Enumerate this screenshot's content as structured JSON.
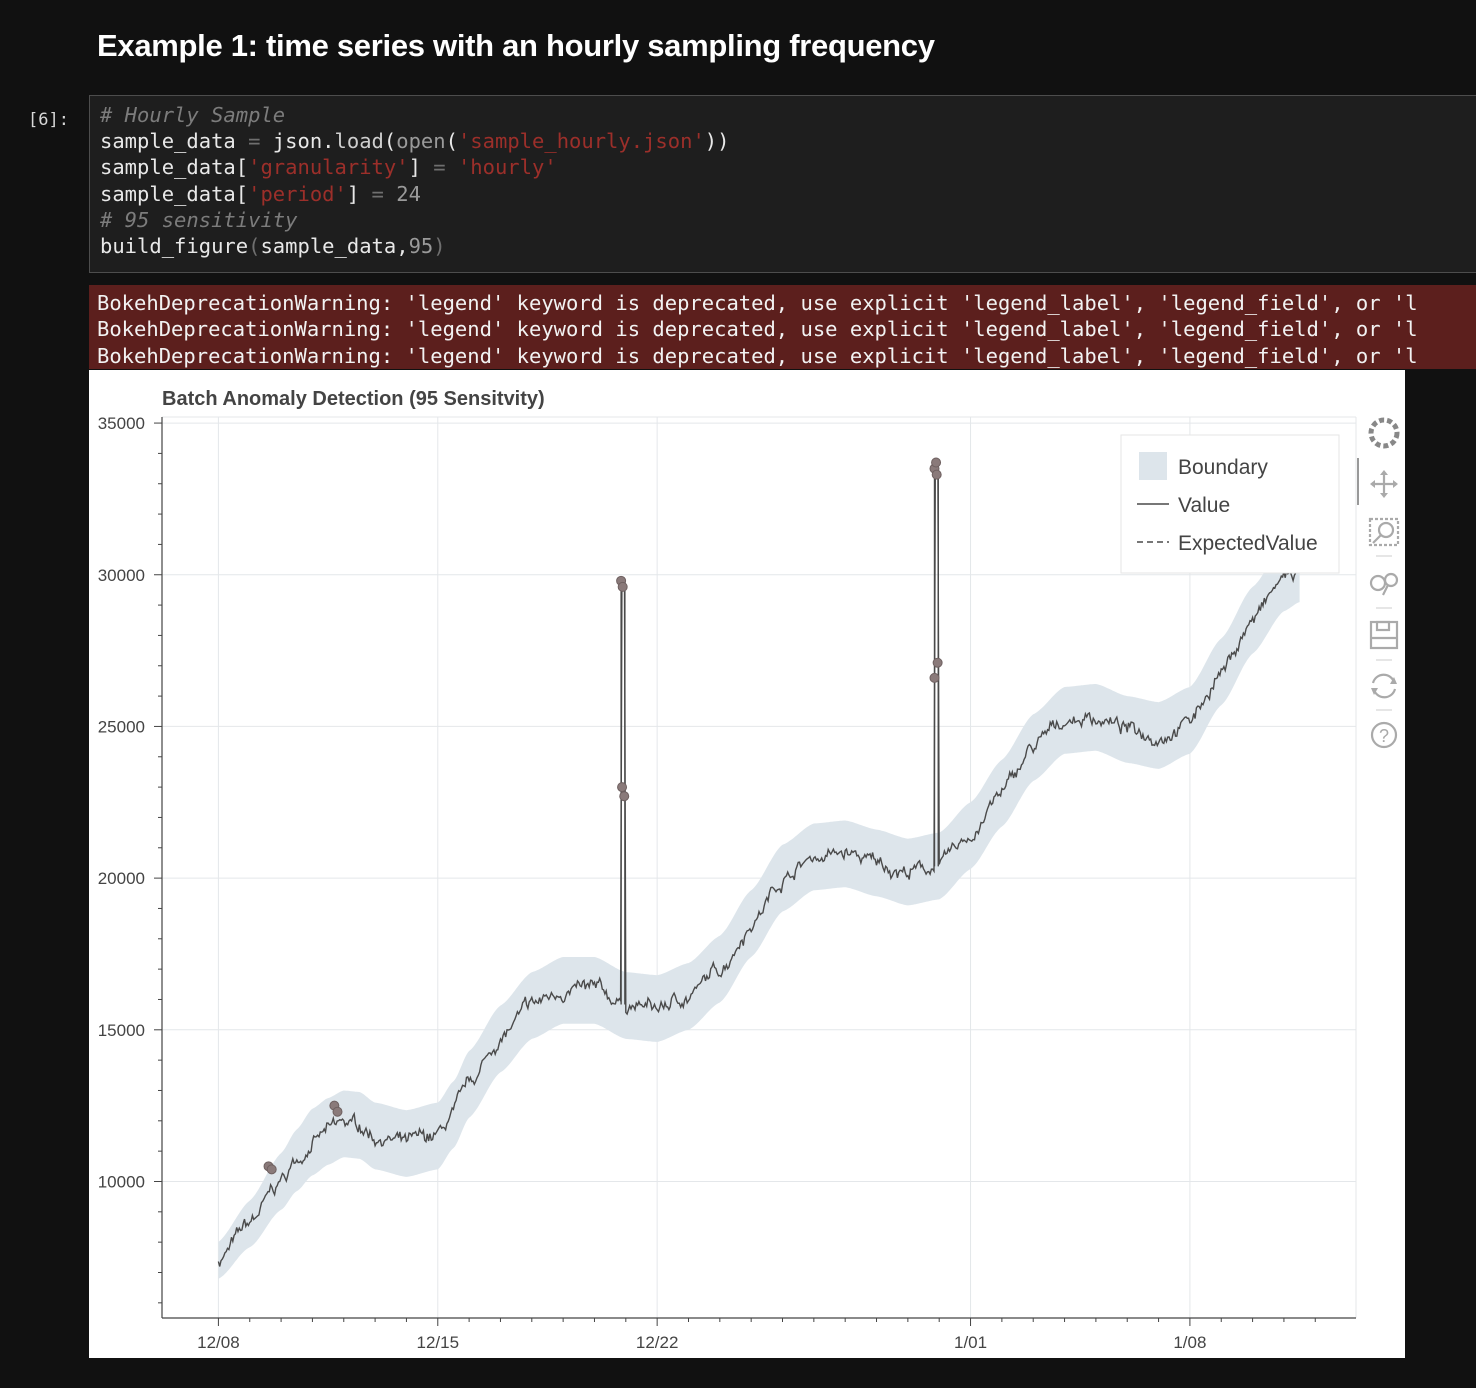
{
  "section_heading": "Example 1: time series with an hourly sampling frequency",
  "cell": {
    "prompt": "[6]:",
    "code_lines": [
      [
        {
          "t": "# Hourly Sample",
          "c": "c-comment"
        }
      ],
      [
        {
          "t": "sample_data "
        },
        {
          "t": "=",
          "c": "c-op"
        },
        {
          "t": " json."
        },
        {
          "t": "load",
          "c": "c-fn"
        },
        {
          "t": "("
        },
        {
          "t": "open",
          "c": "c-num"
        },
        {
          "t": "("
        },
        {
          "t": "'sample_hourly.json'",
          "c": "c-str"
        },
        {
          "t": "))"
        }
      ],
      [
        {
          "t": "sample_data["
        },
        {
          "t": "'granularity'",
          "c": "c-str"
        },
        {
          "t": "] "
        },
        {
          "t": "=",
          "c": "c-op"
        },
        {
          "t": " "
        },
        {
          "t": "'hourly'",
          "c": "c-str"
        }
      ],
      [
        {
          "t": "sample_data["
        },
        {
          "t": "'period'",
          "c": "c-str"
        },
        {
          "t": "] "
        },
        {
          "t": "=",
          "c": "c-op"
        },
        {
          "t": " 24",
          "c": "c-num"
        }
      ],
      [
        {
          "t": "# 95 sensitivity",
          "c": "c-comment"
        }
      ],
      [
        {
          "t": "build_figure"
        },
        {
          "t": "(",
          "c": "c-op"
        },
        {
          "t": "sample_data,"
        },
        {
          "t": "95",
          "c": "c-num"
        },
        {
          "t": ")",
          "c": "c-op"
        }
      ]
    ]
  },
  "stderr_lines": [
    "BokehDeprecationWarning: 'legend' keyword is deprecated, use explicit 'legend_label', 'legend_field', or 'l",
    "BokehDeprecationWarning: 'legend' keyword is deprecated, use explicit 'legend_label', 'legend_field', or 'l",
    "BokehDeprecationWarning: 'legend' keyword is deprecated, use explicit 'legend_label', 'legend_field', or 'l"
  ],
  "toolbar": {
    "tools": [
      "bokeh-logo-icon",
      "pan-icon",
      "box-zoom-icon",
      "wheel-zoom-icon",
      "save-icon",
      "reset-icon",
      "help-icon"
    ]
  },
  "colors": {
    "boundary": "#dde5eb",
    "value": "#4a4a4a",
    "anomaly": "#8a7a7a"
  },
  "chart_data": {
    "type": "line",
    "title": "Batch Anomaly Detection (95 Sensitvity)",
    "x_tick_labels": [
      "12/08",
      "12/15",
      "12/22",
      "1/01",
      "1/08"
    ],
    "x_tick_days": [
      0,
      7,
      14,
      24,
      31
    ],
    "x_range_days": [
      -1.8,
      36.3
    ],
    "y_ticks": [
      10000,
      15000,
      20000,
      25000,
      30000,
      35000
    ],
    "y_range": [
      5500,
      35200
    ],
    "legend": [
      {
        "label": "Boundary",
        "kind": "area"
      },
      {
        "label": "Value",
        "kind": "line"
      },
      {
        "label": "ExpectedValue",
        "kind": "dashed"
      }
    ],
    "legend_position": "top-right",
    "expected_knots": [
      [
        0,
        7400
      ],
      [
        1,
        8600
      ],
      [
        2,
        10000
      ],
      [
        2.5,
        10700
      ],
      [
        3,
        11300
      ],
      [
        3.5,
        11650
      ],
      [
        4,
        11900
      ],
      [
        4.5,
        11850
      ],
      [
        5,
        11500
      ],
      [
        6,
        11250
      ],
      [
        7,
        11500
      ],
      [
        7.5,
        12200
      ],
      [
        8,
        13200
      ],
      [
        9,
        14700
      ],
      [
        10,
        15800
      ],
      [
        11,
        16300
      ],
      [
        12,
        16300
      ],
      [
        13,
        15800
      ],
      [
        14,
        15700
      ],
      [
        15,
        16100
      ],
      [
        16,
        17000
      ],
      [
        17,
        18500
      ],
      [
        18,
        20000
      ],
      [
        19,
        20700
      ],
      [
        20,
        20800
      ],
      [
        21,
        20500
      ],
      [
        22,
        20200
      ],
      [
        23,
        20400
      ],
      [
        24,
        21400
      ],
      [
        25,
        22800
      ],
      [
        26,
        24300
      ],
      [
        27,
        25200
      ],
      [
        28,
        25300
      ],
      [
        29,
        24900
      ],
      [
        30,
        24700
      ],
      [
        31,
        25200
      ],
      [
        32,
        26800
      ],
      [
        33,
        28500
      ],
      [
        34,
        29900
      ],
      [
        34.5,
        30200
      ]
    ],
    "band_halfwidth": 1100,
    "spikes": [
      {
        "day": 12.9,
        "top": 29800
      },
      {
        "day": 22.9,
        "top": 33700
      }
    ],
    "anomaly_points": [
      [
        1.6,
        10500
      ],
      [
        1.7,
        10400
      ],
      [
        3.7,
        12500
      ],
      [
        3.8,
        12300
      ],
      [
        12.85,
        29800
      ],
      [
        12.9,
        29600
      ],
      [
        12.88,
        23000
      ],
      [
        12.95,
        22700
      ],
      [
        22.85,
        33500
      ],
      [
        22.9,
        33700
      ],
      [
        22.92,
        33300
      ],
      [
        22.85,
        26600
      ],
      [
        22.95,
        27100
      ]
    ]
  }
}
